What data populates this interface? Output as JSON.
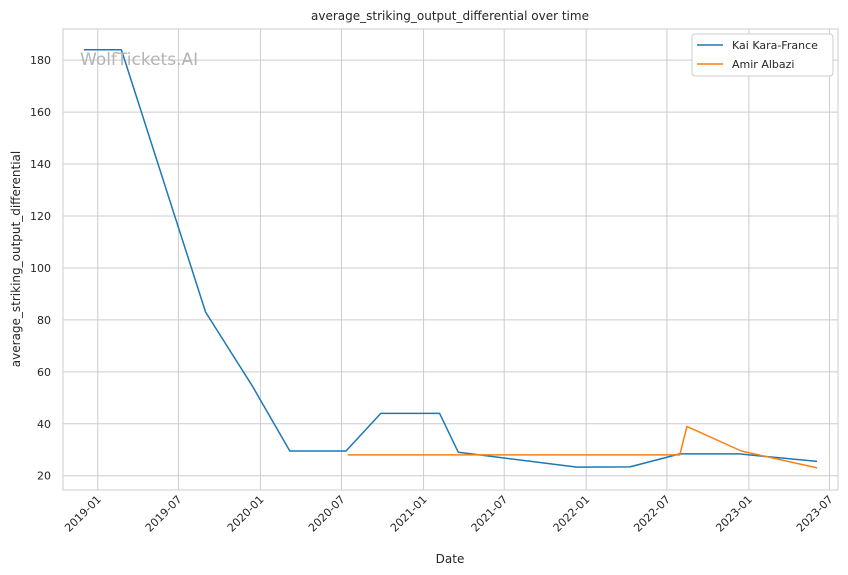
{
  "chart_data": {
    "type": "line",
    "title": "average_striking_output_differential over time",
    "xlabel": "Date",
    "ylabel": "average_striking_output_differential",
    "watermark": "WolfTickets.AI",
    "xlim": [
      "2018-10-15",
      "2023-07-20"
    ],
    "ylim": [
      14.5,
      192
    ],
    "x_ticks": [
      "2019-01",
      "2019-07",
      "2020-01",
      "2020-07",
      "2021-01",
      "2021-07",
      "2022-01",
      "2022-07",
      "2023-01",
      "2023-07"
    ],
    "y_ticks": [
      20,
      40,
      60,
      80,
      100,
      120,
      140,
      160,
      180
    ],
    "grid": true,
    "legend_position": "top-right",
    "series": [
      {
        "name": "Kai Kara-France",
        "color": "#1f77b4",
        "points": [
          {
            "x": "2018-12-01",
            "y": 184
          },
          {
            "x": "2019-02-23",
            "y": 184
          },
          {
            "x": "2019-08-31",
            "y": 83
          },
          {
            "x": "2019-12-14",
            "y": 54.5
          },
          {
            "x": "2020-03-07",
            "y": 29.5
          },
          {
            "x": "2020-07-11",
            "y": 29.5
          },
          {
            "x": "2020-09-27",
            "y": 44
          },
          {
            "x": "2021-02-06",
            "y": 44
          },
          {
            "x": "2021-03-20",
            "y": 29
          },
          {
            "x": "2021-12-11",
            "y": 23.3
          },
          {
            "x": "2022-04-09",
            "y": 23.4
          },
          {
            "x": "2022-07-30",
            "y": 28.4
          },
          {
            "x": "2022-12-10",
            "y": 28.4
          },
          {
            "x": "2023-06-03",
            "y": 25.5
          }
        ]
      },
      {
        "name": "Amir Albazi",
        "color": "#ff7f0e",
        "points": [
          {
            "x": "2020-07-15",
            "y": 28
          },
          {
            "x": "2022-07-30",
            "y": 28
          },
          {
            "x": "2022-08-15",
            "y": 39
          },
          {
            "x": "2022-12-15",
            "y": 29.5
          },
          {
            "x": "2023-06-03",
            "y": 23
          }
        ]
      }
    ]
  }
}
